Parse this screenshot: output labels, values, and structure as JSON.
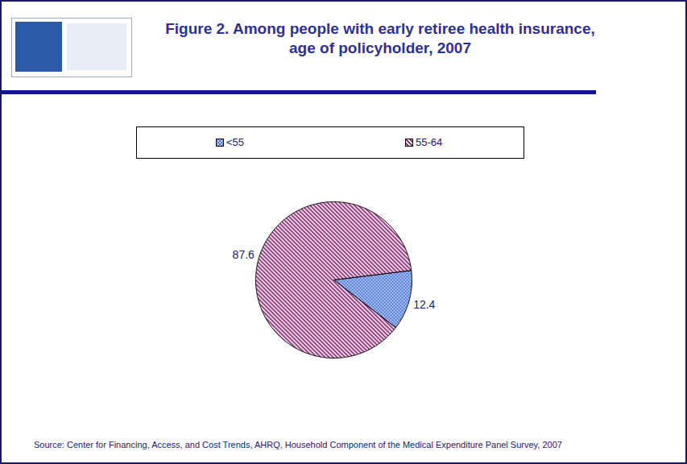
{
  "chart_data": {
    "type": "pie",
    "title": "Figure 2. Among people with early retiree health insurance, age of policyholder, 2007",
    "categories": [
      "<55",
      "55-64"
    ],
    "values": [
      12.4,
      87.6
    ],
    "colors": [
      "#3f6fd8",
      "#7d1466"
    ],
    "data_labels": true,
    "legend": "top",
    "source": "Source: Center for Financing, Access, and Cost Trends, AHRQ, Household Component of the Medical Expenditure Panel Survey, 2007"
  }
}
